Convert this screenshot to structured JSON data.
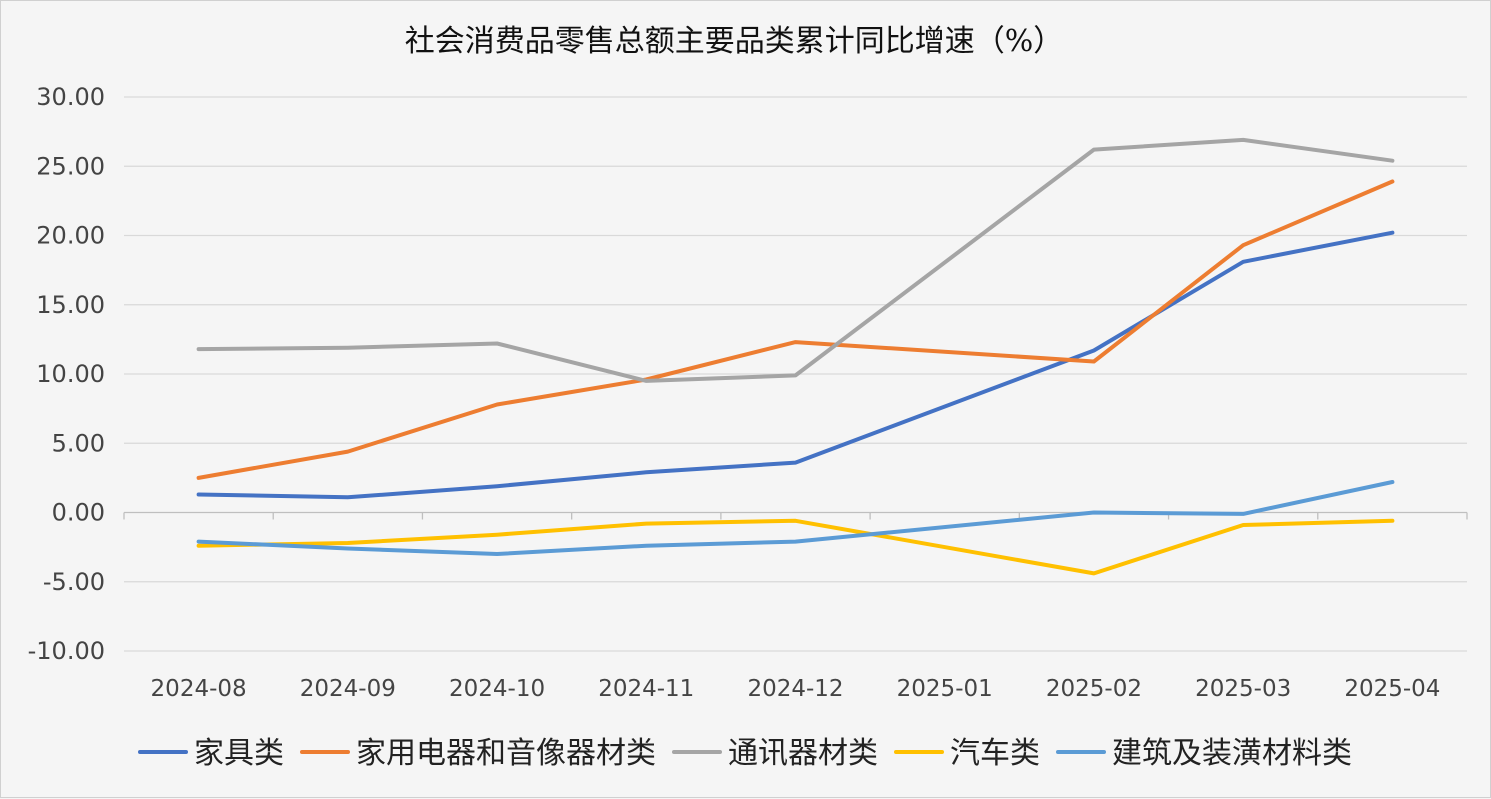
{
  "chart_data": {
    "type": "line",
    "title": "社会消费品零售总额主要品类累计同比增速（%）",
    "xlabel": "",
    "ylabel": "",
    "categories": [
      "2024-08",
      "2024-09",
      "2024-10",
      "2024-11",
      "2024-12",
      "2025-01",
      "2025-02",
      "2025-03",
      "2025-04"
    ],
    "ylim": [
      -10,
      30
    ],
    "yticks": [
      "30.00",
      "25.00",
      "20.00",
      "15.00",
      "10.00",
      "5.00",
      "0.00",
      "-5.00",
      "-10.00"
    ],
    "grid": true,
    "legend_position": "bottom",
    "series": [
      {
        "name": "家具类",
        "color": "#4472c4",
        "values": [
          1.3,
          1.1,
          1.9,
          2.9,
          3.6,
          null,
          11.7,
          18.1,
          20.2
        ]
      },
      {
        "name": "家用电器和音像器材类",
        "color": "#ed7d31",
        "values": [
          2.5,
          4.4,
          7.8,
          9.6,
          12.3,
          null,
          10.9,
          19.3,
          23.9
        ]
      },
      {
        "name": "通讯器材类",
        "color": "#a5a5a5",
        "values": [
          11.8,
          11.9,
          12.2,
          9.5,
          9.9,
          null,
          26.2,
          26.9,
          25.4
        ]
      },
      {
        "name": "汽车类",
        "color": "#ffc000",
        "values": [
          -2.4,
          -2.2,
          -1.6,
          -0.8,
          -0.6,
          null,
          -4.4,
          -0.9,
          -0.6
        ]
      },
      {
        "name": "建筑及装潢材料类",
        "color": "#5b9bd5",
        "values": [
          -2.1,
          -2.6,
          -3.0,
          -2.4,
          -2.1,
          null,
          0.0,
          -0.1,
          2.2
        ]
      }
    ]
  }
}
